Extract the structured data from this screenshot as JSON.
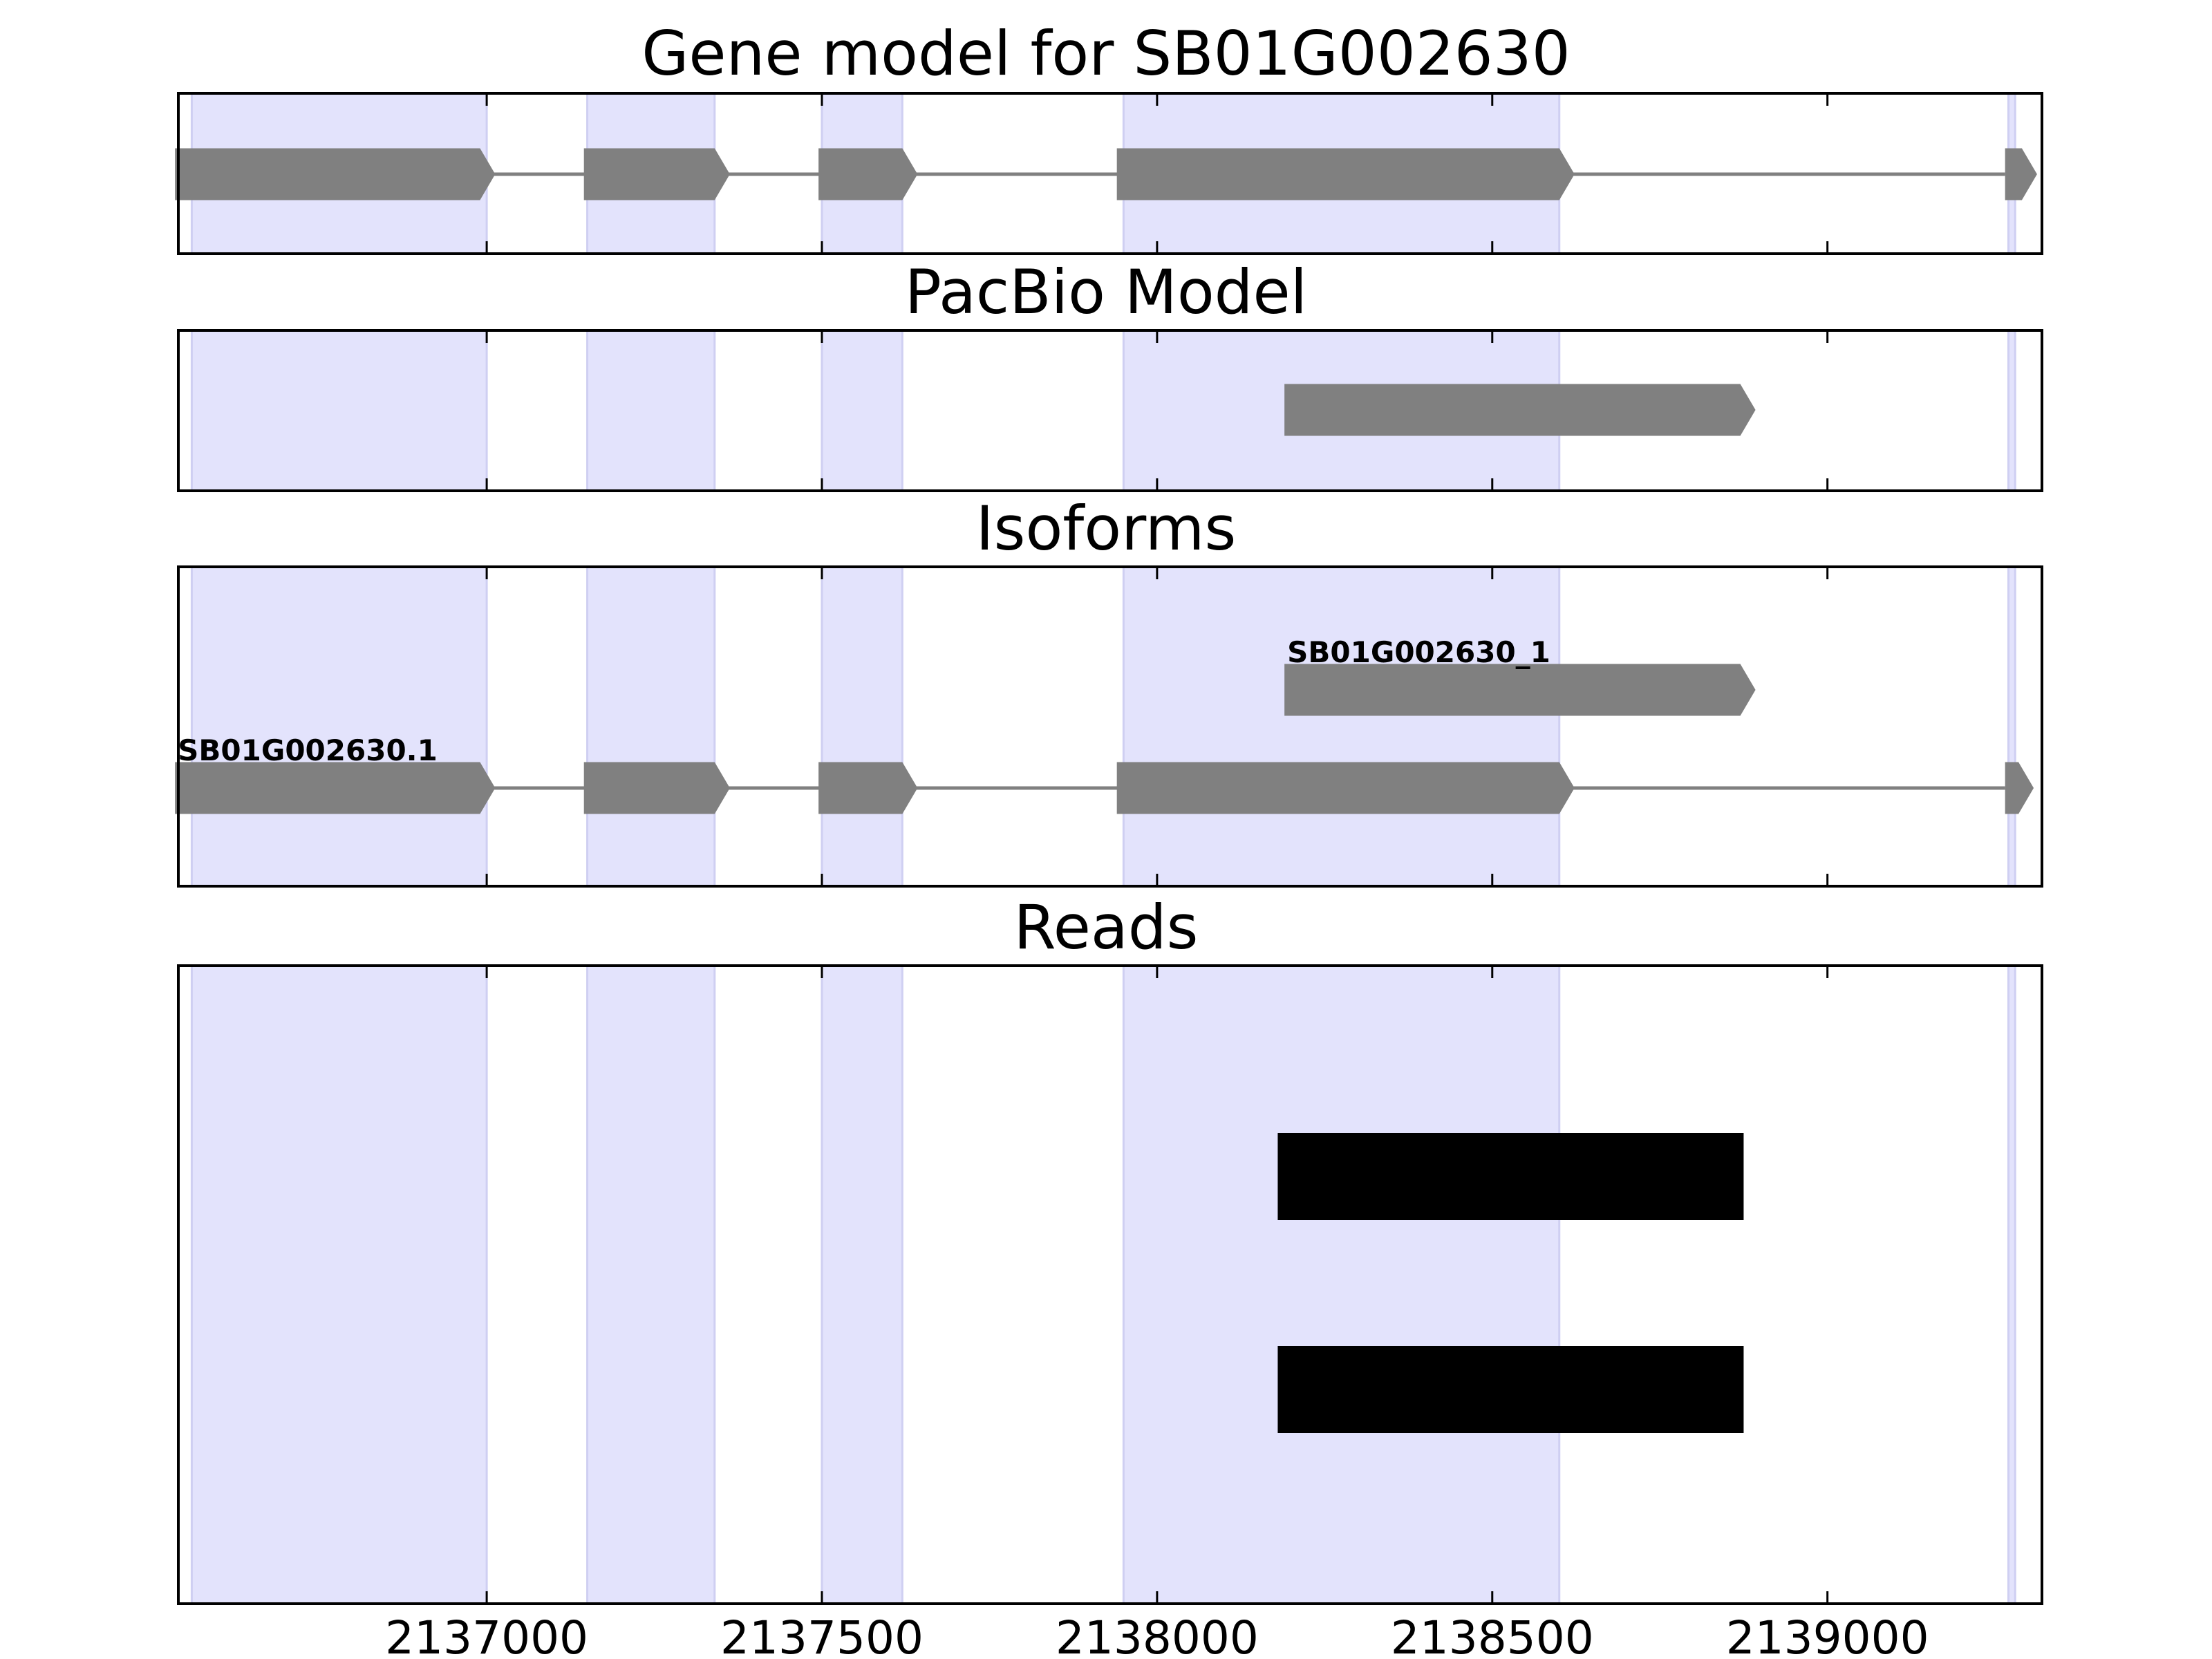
{
  "chart_data": {
    "type": "gene-track",
    "title": "Gene model for SB01G002630",
    "xlim": [
      2136540,
      2139320
    ],
    "xticks": [
      2137000,
      2137500,
      2138000,
      2138500,
      2139000
    ],
    "xtick_labels": [
      "2137000",
      "2137500",
      "2138000",
      "2138500",
      "2139000"
    ],
    "strand": "+",
    "highlight_color": "#e3e3fc",
    "feature_color": "#808080",
    "read_color": "#000000",
    "exon_regions": [
      [
        2136560,
        2137000
      ],
      [
        2137150,
        2137340
      ],
      [
        2137500,
        2137620
      ],
      [
        2137950,
        2138600
      ],
      [
        2139270,
        2139280
      ]
    ],
    "panels": [
      {
        "name": "gene-model",
        "title": "Gene model for SB01G002630",
        "show_title": false,
        "tracks": [
          {
            "label": "",
            "exons": [
              [
                2136535,
                2136990
              ],
              [
                2137145,
                2137340
              ],
              [
                2137495,
                2137620
              ],
              [
                2137940,
                2138600
              ],
              [
                2139265,
                2139290
              ]
            ]
          }
        ]
      },
      {
        "name": "pacbio-model",
        "title": "PacBio Model",
        "show_title": true,
        "tracks": [
          {
            "label": "",
            "exons": [
              [
                2138190,
                2138870
              ]
            ]
          }
        ]
      },
      {
        "name": "isoforms",
        "title": "Isoforms",
        "show_title": true,
        "tracks": [
          {
            "label": "SB01G002630_1",
            "exons": [
              [
                2138190,
                2138870
              ]
            ]
          },
          {
            "label": "SB01G002630.1",
            "exons": [
              [
                2136535,
                2136990
              ],
              [
                2137145,
                2137340
              ],
              [
                2137495,
                2137620
              ],
              [
                2137940,
                2138600
              ],
              [
                2139265,
                2139285
              ]
            ]
          }
        ]
      },
      {
        "name": "reads",
        "title": "Reads",
        "show_title": true,
        "reads": [
          [
            2138180,
            2138875
          ],
          [
            2138180,
            2138875
          ]
        ]
      }
    ]
  }
}
